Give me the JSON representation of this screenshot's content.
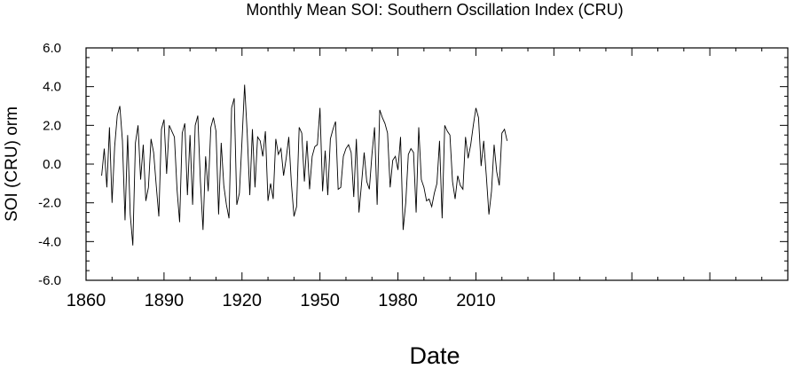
{
  "chart_data": {
    "type": "line",
    "title": "Monthly Mean SOI: Southern Oscillation Index (CRU)",
    "xlabel": "Date",
    "ylabel": "SOI (CRU) orm",
    "xlim": [
      1860,
      2130
    ],
    "ylim": [
      -6.0,
      6.0
    ],
    "x_ticks": [
      {
        "value": 1860,
        "label": "1860"
      },
      {
        "value": 1890,
        "label": "1890"
      },
      {
        "value": 1920,
        "label": "1920"
      },
      {
        "value": 1950,
        "label": "1950"
      },
      {
        "value": 1980,
        "label": "1980"
      },
      {
        "value": 2010,
        "label": "2010"
      }
    ],
    "y_ticks": [
      {
        "value": 6,
        "label": "6.0"
      },
      {
        "value": 4,
        "label": "4.0"
      },
      {
        "value": 2,
        "label": "2.0"
      },
      {
        "value": 0,
        "label": "0.0"
      },
      {
        "value": -2,
        "label": "-2.0"
      },
      {
        "value": -4,
        "label": "-4.0"
      },
      {
        "value": -6,
        "label": "-6.0"
      }
    ],
    "grid": false,
    "series": [
      {
        "x": [
          1866,
          1867,
          1868,
          1869,
          1870,
          1871,
          1872,
          1873,
          1874,
          1875,
          1876,
          1877,
          1878,
          1879,
          1880,
          1881,
          1882,
          1883,
          1884,
          1885,
          1886,
          1887,
          1888,
          1889,
          1890,
          1891,
          1892,
          1893,
          1894,
          1895,
          1896,
          1897,
          1898,
          1899,
          1900,
          1901,
          1902,
          1903,
          1904,
          1905,
          1906,
          1907,
          1908,
          1909,
          1910,
          1911,
          1912,
          1913,
          1914,
          1915,
          1916,
          1917,
          1918,
          1919,
          1920,
          1921,
          1922,
          1923,
          1924,
          1925,
          1926,
          1927,
          1928,
          1929,
          1930,
          1931,
          1932,
          1933,
          1934,
          1935,
          1936,
          1937,
          1938,
          1939,
          1940,
          1941,
          1942,
          1943,
          1944,
          1945,
          1946,
          1947,
          1948,
          1949,
          1950,
          1951,
          1952,
          1953,
          1954,
          1955,
          1956,
          1957,
          1958,
          1959,
          1960,
          1961,
          1962,
          1963,
          1964,
          1965,
          1966,
          1967,
          1968,
          1969,
          1970,
          1971,
          1972,
          1973,
          1974,
          1975,
          1976,
          1977,
          1978,
          1979,
          1980,
          1981,
          1982,
          1983,
          1984,
          1985,
          1986,
          1987,
          1988,
          1989,
          1990,
          1991,
          1992,
          1993,
          1994,
          1995,
          1996,
          1997,
          1998,
          1999,
          2000,
          2001,
          2002,
          2003,
          2004,
          2005,
          2006,
          2007,
          2008,
          2009,
          2010,
          2011,
          2012,
          2013,
          2014,
          2015,
          2016,
          2017,
          2018,
          2019,
          2020,
          2021,
          2022
        ],
        "values": [
          -0.6,
          0.8,
          -1.2,
          1.9,
          -2.0,
          0.9,
          2.5,
          3.0,
          1.2,
          -2.9,
          1.5,
          -2.6,
          -4.2,
          1.1,
          2.0,
          -0.8,
          1.0,
          -1.9,
          -1.2,
          1.3,
          0.6,
          -1.1,
          -2.7,
          1.8,
          2.3,
          -0.5,
          2.0,
          1.7,
          1.4,
          -1.3,
          -3.0,
          1.6,
          2.1,
          -1.6,
          1.5,
          -2.1,
          2.0,
          2.5,
          -0.9,
          -3.4,
          0.4,
          -1.4,
          1.9,
          2.4,
          1.7,
          -2.6,
          1.1,
          -1.1,
          -2.1,
          -2.8,
          2.9,
          3.4,
          -2.1,
          -1.5,
          1.2,
          4.1,
          1.6,
          -1.6,
          1.8,
          -1.2,
          1.4,
          1.2,
          0.4,
          1.7,
          -1.9,
          -1.0,
          -1.8,
          1.3,
          0.5,
          0.8,
          -0.6,
          0.3,
          1.4,
          -1.0,
          -2.7,
          -2.2,
          1.9,
          1.6,
          -0.9,
          1.2,
          -1.3,
          0.4,
          0.9,
          1.0,
          2.9,
          -1.4,
          0.7,
          -1.6,
          1.3,
          1.8,
          2.2,
          -1.3,
          -1.2,
          0.4,
          0.8,
          1.0,
          0.6,
          -1.7,
          1.3,
          -2.5,
          -1.0,
          0.6,
          -0.9,
          -1.3,
          0.5,
          1.9,
          -2.1,
          2.8,
          2.4,
          2.1,
          1.6,
          -1.2,
          0.2,
          0.4,
          -0.3,
          1.4,
          -3.4,
          -2.0,
          0.5,
          0.8,
          0.6,
          -2.5,
          1.9,
          -0.8,
          -1.2,
          -1.9,
          -1.8,
          -2.2,
          -1.5,
          -1.0,
          1.2,
          -2.8,
          2.0,
          1.7,
          1.5,
          -0.9,
          -1.8,
          -0.6,
          -1.1,
          -1.3,
          1.4,
          0.3,
          1.0,
          2.0,
          2.9,
          2.4,
          -0.1,
          1.2,
          -0.6,
          -2.6,
          -1.4,
          1.0,
          -0.4,
          -1.1,
          1.6,
          1.8,
          1.2
        ]
      }
    ]
  }
}
